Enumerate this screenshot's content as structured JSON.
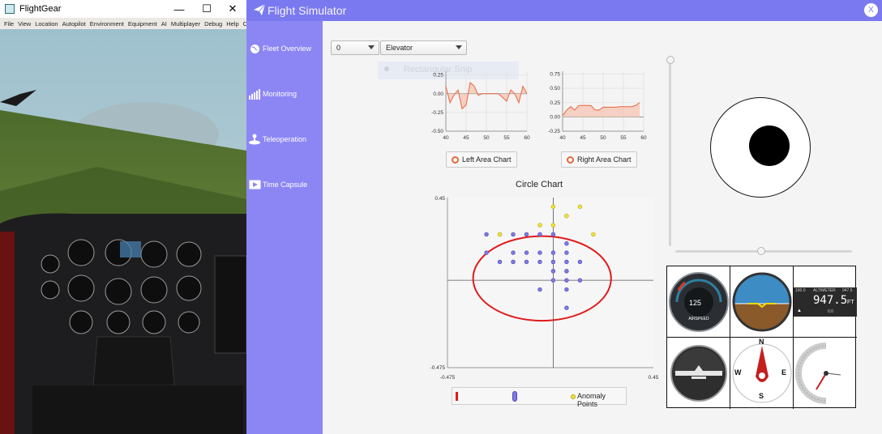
{
  "flightgear": {
    "title": "FlightGear",
    "menu": [
      "File",
      "View",
      "Location",
      "Autopilot",
      "Environment",
      "Equipment",
      "AI",
      "Multiplayer",
      "Debug",
      "Help",
      "Ce"
    ],
    "window_controls": {
      "minimize": "—",
      "maximize": "☐",
      "close": "✕"
    }
  },
  "app": {
    "title": "Flight Simulator",
    "close_label": "X"
  },
  "sidebar": {
    "items": [
      {
        "label": "Fleet Overview",
        "icon": "globe-icon"
      },
      {
        "label": "Monitoring",
        "icon": "bar-chart-icon"
      },
      {
        "label": "Teleoperation",
        "icon": "joystick-icon"
      },
      {
        "label": "Time Capsule",
        "icon": "video-icon"
      }
    ]
  },
  "controls": {
    "index_select": "0",
    "feature_select": "Elevator",
    "ghost_label": "Rectangular Snip"
  },
  "left_chart": {
    "legend": "Left Area Chart",
    "yticks": [
      "0.25",
      "0.00",
      "-0.25",
      "-0.50"
    ],
    "xticks": [
      "40",
      "45",
      "50",
      "55",
      "60"
    ]
  },
  "right_chart": {
    "legend": "Right Area Chart",
    "yticks": [
      "0.75",
      "0.50",
      "0.25",
      "0.00",
      "-0.25"
    ],
    "xticks": [
      "40",
      "45",
      "50",
      "55",
      "60"
    ]
  },
  "circle_chart": {
    "title": "Circle Chart",
    "y_top": "0.45",
    "y_bottom": "-0.475",
    "x_left": "-0.475",
    "x_right": "0.45",
    "legend_anomaly": "Anomaly Points"
  },
  "gauges": {
    "airspeed_value": "125",
    "airspeed_label": "AIRSPEED",
    "altimeter_top_left": "100.0",
    "altimeter_label": "ALTIMETER",
    "altimeter_top_right": "947.5",
    "altimeter_value": "947.5",
    "altimeter_unit": "FT",
    "altimeter_bottom": "0.0",
    "compass_n": "N",
    "compass_s": "S",
    "compass_e": "E",
    "compass_w": "W"
  },
  "colors": {
    "header": "#7b79f0",
    "sidebar": "#8c86f5",
    "area_line": "#e8663e",
    "area_fill": "#f6c9b8",
    "normal_point": "#7f7ae0",
    "anomaly_point": "#f1e43a",
    "circle": "#e01b1b"
  },
  "chart_data": [
    {
      "type": "area",
      "name": "Left Area Chart",
      "x": [
        40,
        41,
        42,
        43,
        44,
        45,
        46,
        47,
        48,
        49,
        50,
        51,
        52,
        53,
        54,
        55,
        56,
        57,
        58,
        59,
        60
      ],
      "y": [
        0.1,
        -0.12,
        -0.02,
        0.05,
        -0.2,
        -0.15,
        0.15,
        0.1,
        -0.02,
        0.0,
        0.0,
        0.0,
        0.0,
        0.0,
        -0.05,
        -0.1,
        0.05,
        0.0,
        -0.12,
        0.1,
        0.0
      ],
      "xlim": [
        40,
        60
      ],
      "ylim": [
        -0.5,
        0.3
      ]
    },
    {
      "type": "area",
      "name": "Right Area Chart",
      "x": [
        40,
        41,
        42,
        43,
        44,
        45,
        46,
        47,
        48,
        49,
        50,
        51,
        52,
        53,
        54,
        55,
        56,
        57,
        58,
        59
      ],
      "y": [
        0.02,
        0.12,
        0.18,
        0.12,
        0.2,
        0.2,
        0.2,
        0.2,
        0.12,
        0.12,
        0.17,
        0.17,
        0.17,
        0.17,
        0.18,
        0.18,
        0.18,
        0.18,
        0.2,
        0.25
      ],
      "xlim": [
        40,
        60
      ],
      "ylim": [
        -0.25,
        0.8
      ]
    },
    {
      "type": "scatter",
      "name": "Circle Chart",
      "xlim": [
        -0.475,
        0.45
      ],
      "ylim": [
        -0.475,
        0.45
      ],
      "normal_points": [
        [
          -0.3,
          0.25
        ],
        [
          -0.24,
          0.25
        ],
        [
          -0.18,
          0.25
        ],
        [
          -0.12,
          0.25
        ],
        [
          -0.06,
          0.25
        ],
        [
          0.0,
          0.25
        ],
        [
          0.06,
          0.2
        ],
        [
          -0.18,
          0.15
        ],
        [
          -0.12,
          0.15
        ],
        [
          -0.06,
          0.15
        ],
        [
          0.0,
          0.15
        ],
        [
          0.06,
          0.15
        ],
        [
          -0.3,
          0.15
        ],
        [
          -0.24,
          0.1
        ],
        [
          -0.18,
          0.1
        ],
        [
          -0.12,
          0.1
        ],
        [
          -0.06,
          0.1
        ],
        [
          0.0,
          0.1
        ],
        [
          0.06,
          0.1
        ],
        [
          0.12,
          0.1
        ],
        [
          0.0,
          0.05
        ],
        [
          0.06,
          0.05
        ],
        [
          0.0,
          0.0
        ],
        [
          0.06,
          0.0
        ],
        [
          0.12,
          0.0
        ],
        [
          -0.06,
          -0.05
        ],
        [
          0.06,
          -0.05
        ],
        [
          0.06,
          -0.15
        ]
      ],
      "anomaly_points": [
        [
          0.0,
          0.4
        ],
        [
          0.12,
          0.4
        ],
        [
          0.06,
          0.35
        ],
        [
          -0.06,
          0.3
        ],
        [
          0.0,
          0.3
        ],
        [
          -0.24,
          0.25
        ],
        [
          0.18,
          0.25
        ]
      ],
      "circle": {
        "cx": -0.05,
        "cy": 0.01,
        "rx": 0.31,
        "ry": 0.23
      }
    }
  ]
}
